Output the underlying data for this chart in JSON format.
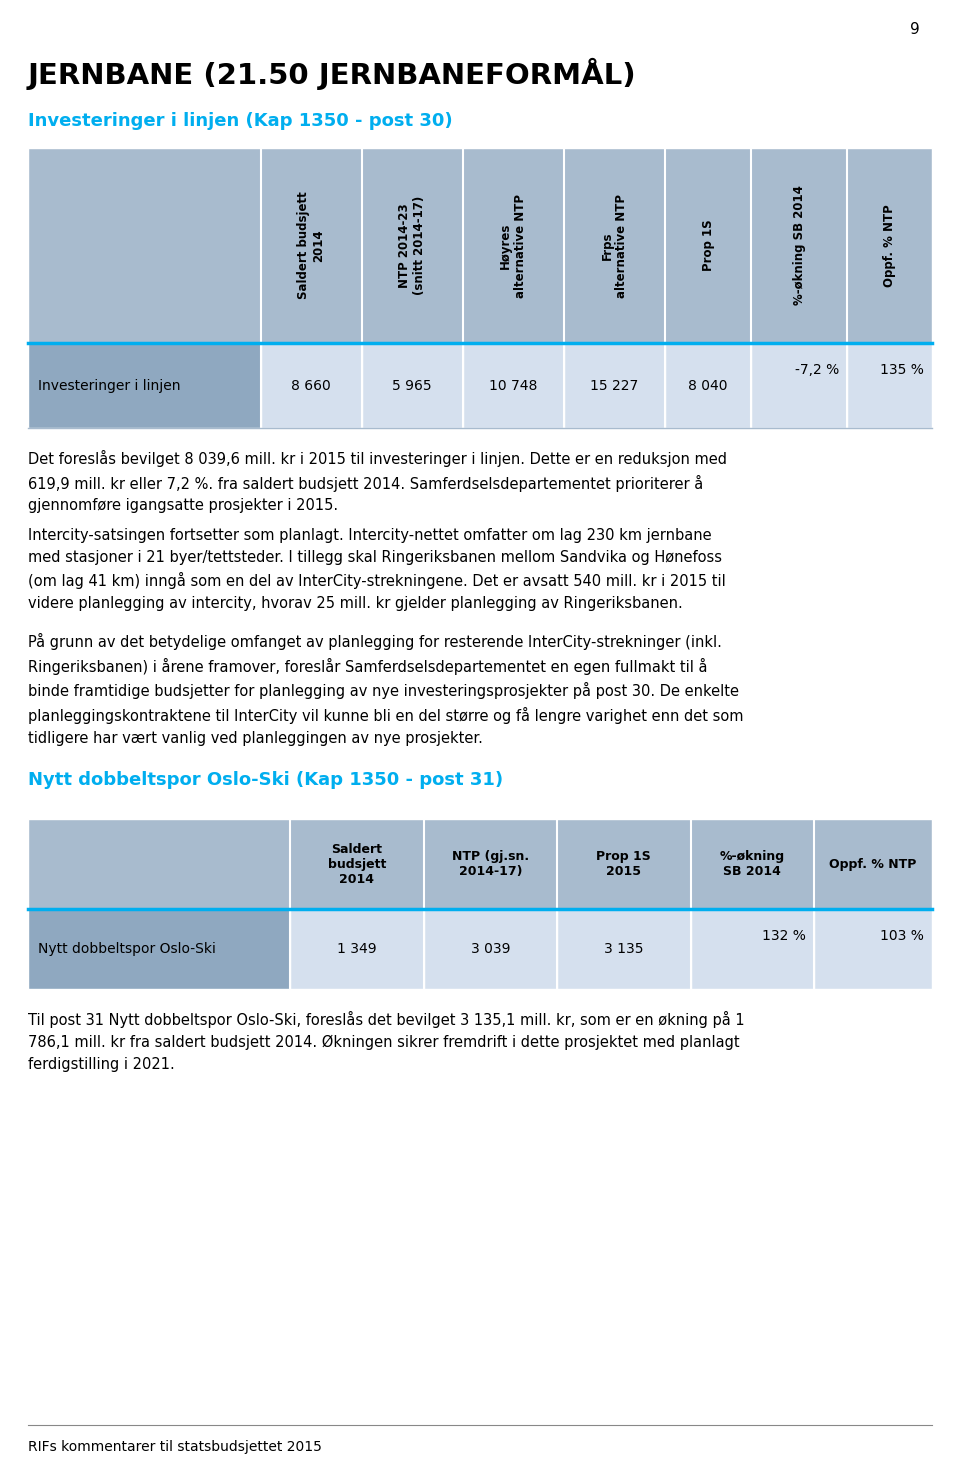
{
  "page_number": "9",
  "main_title": "JERNBANE (21.50 JERNBANEFORMÅL)",
  "section1_title": "Investeringer i linjen (Kap 1350 - post 30)",
  "section2_title": "Nytt dobbeltspor Oslo-Ski (Kap 1350 - post 31)",
  "footer_text": "RIFs kommentarer til statsbudsjettet 2015",
  "cyan_color": "#00AEEF",
  "table1_header_bg": "#A8BBCE",
  "table1_data_bg": "#D5E0EE",
  "table1_row_label_bg": "#8FA8C0",
  "table2_header_bg": "#A8BBCE",
  "table2_data_bg": "#D5E0EE",
  "table2_row_label_bg": "#8FA8C0",
  "table1_headers": [
    "Saldert budsjett\n2014",
    "NTP 2014-23\n(snitt 2014-17)",
    "Høyres\nalternative NTP",
    "Frps\nalternative NTP",
    "Prop 1S",
    "%-økning SB 2014",
    "Oppf. % NTP"
  ],
  "table1_row_label": "Investeringer i linjen",
  "table1_values": [
    "8 660",
    "5 965",
    "10 748",
    "15 227",
    "8 040",
    "-7,2 %",
    "135 %"
  ],
  "table2_headers": [
    "Saldert\nbudsjett\n2014",
    "NTP (gj.sn.\n2014-17)",
    "Prop 1S\n2015",
    "%-økning\nSB 2014",
    "Oppf. % NTP"
  ],
  "table2_row_label": "Nytt dobbeltspor Oslo-Ski",
  "table2_values": [
    "1 349",
    "3 039",
    "3 135",
    "132 %",
    "103 %"
  ],
  "body_text1": "Det foreslås bevilget 8 039,6 mill. kr i 2015 til investeringer i linjen. Dette er en reduksjon med\n619,9 mill. kr eller 7,2 %. fra saldert budsjett 2014. Samferdselsdepartementet prioriterer å\ngjennomføre igangsatte prosjekter i 2015.",
  "body_text2": "Intercity-satsingen fortsetter som planlagt. Intercity-nettet omfatter om lag 230 km jernbane\nmed stasjoner i 21 byer/tettsteder. I tillegg skal Ringeriksbanen mellom Sandvika og Hønefoss\n(om lag 41 km) inngå som en del av InterCity-strekningene. Det er avsatt 540 mill. kr i 2015 til\nvidere planlegging av intercity, hvorav 25 mill. kr gjelder planlegging av Ringeriksbanen.",
  "body_text3": "På grunn av det betydelige omfanget av planlegging for resterende InterCity-strekninger (inkl.\nRingeriksbanen) i årene framover, foreslår Samferdselsdepartementet en egen fullmakt til å\nbinde framtidige budsjetter for planlegging av nye investeringsprosjekter på post 30. De enkelte\nplanleggingskontraktene til InterCity vil kunne bli en del større og få lengre varighet enn det som\ntidligere har vært vanlig ved planleggingen av nye prosjekter.",
  "body_text4": "Til post 31 Nytt dobbeltspor Oslo-Ski, foreslås det bevilget 3 135,1 mill. kr, som er en økning på 1\n786,1 mill. kr fra saldert budsjett 2014. Økningen sikrer fremdrift i dette prosjektet med planlagt\nferdigstilling i 2021."
}
